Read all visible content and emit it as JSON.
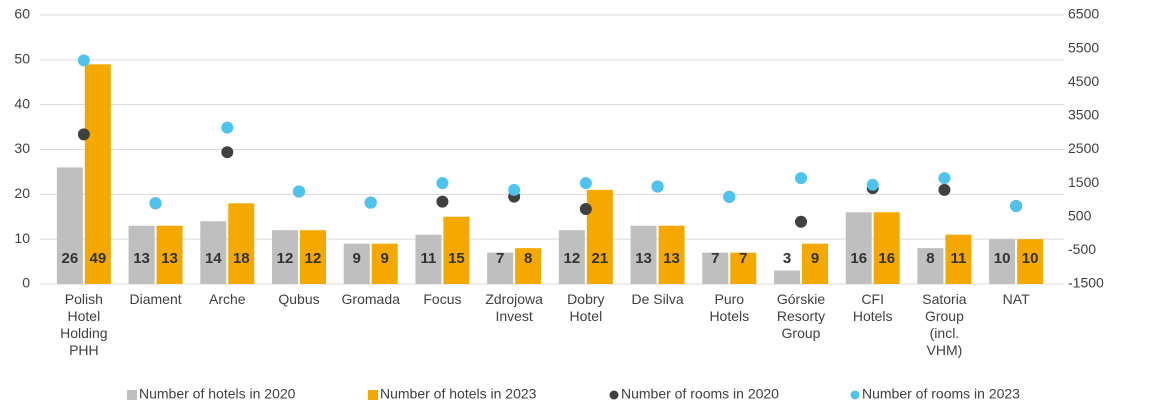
{
  "chart_data": {
    "type": "bar",
    "categories": [
      "Polish Hotel Holding PHH",
      "Diament",
      "Arche",
      "Qubus",
      "Gromada",
      "Focus",
      "Zdrojowa Invest",
      "Dobry Hotel",
      "De Silva",
      "Puro Hotels",
      "Górskie Resorty Group",
      "CFI Hotels",
      "Satoria Group (incl. VHM)",
      "NAT"
    ],
    "series": [
      {
        "name": "Number of hotels in 2020",
        "type": "bar",
        "color": "#bfbfbf",
        "values": [
          26,
          13,
          14,
          12,
          9,
          11,
          7,
          12,
          13,
          7,
          3,
          16,
          8,
          10
        ]
      },
      {
        "name": "Number of hotels in 2023",
        "type": "bar",
        "color": "#f5a800",
        "values": [
          49,
          13,
          18,
          12,
          9,
          15,
          8,
          21,
          13,
          7,
          9,
          16,
          11,
          10
        ]
      },
      {
        "name": "Number of rooms in 2020",
        "type": "scatter",
        "axis": "y2",
        "color": "#404040",
        "values": [
          2950,
          900,
          2420,
          1250,
          920,
          950,
          1100,
          730,
          1400,
          1090,
          350,
          1350,
          1300,
          820
        ]
      },
      {
        "name": "Number of rooms in 2023",
        "type": "scatter",
        "axis": "y2",
        "color": "#4dc3ed",
        "values": [
          5150,
          900,
          3150,
          1250,
          920,
          1500,
          1300,
          1500,
          1400,
          1090,
          1650,
          1450,
          1650,
          820
        ]
      }
    ],
    "ylim": [
      0,
      60
    ],
    "yticks": [
      0,
      10,
      20,
      30,
      40,
      50,
      60
    ],
    "y2lim": [
      -1500,
      6500
    ],
    "y2ticks": [
      -1500,
      -500,
      500,
      1500,
      2500,
      3500,
      4500,
      5500,
      6500
    ],
    "grid": true,
    "legend": "bottom",
    "data_labels": true
  }
}
